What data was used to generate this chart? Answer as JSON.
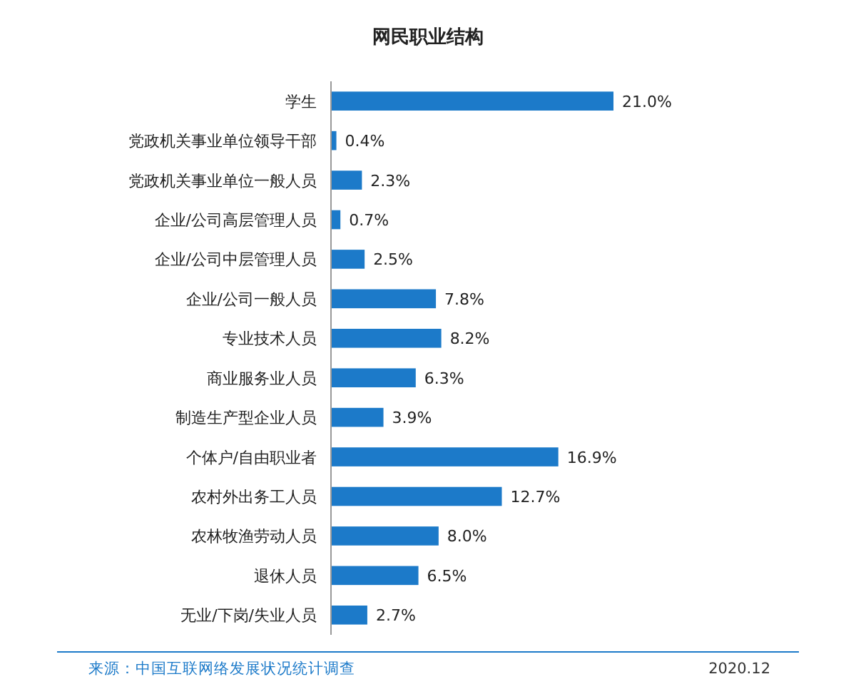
{
  "chart_data": {
    "type": "bar",
    "orientation": "horizontal",
    "title": "网民职业结构",
    "categories": [
      "学生",
      "党政机关事业单位领导干部",
      "党政机关事业单位一般人员",
      "企业/公司高层管理人员",
      "企业/公司中层管理人员",
      "企业/公司一般人员",
      "专业技术人员",
      "商业服务业人员",
      "制造生产型企业人员",
      "个体户/自由职业者",
      "农村外出务工人员",
      "农林牧渔劳动人员",
      "退休人员",
      "无业/下岗/失业人员"
    ],
    "values": [
      21.0,
      0.4,
      2.3,
      0.7,
      2.5,
      7.8,
      8.2,
      6.3,
      3.9,
      16.9,
      12.7,
      8.0,
      6.5,
      2.7
    ],
    "value_labels": [
      "21.0%",
      "0.4%",
      "2.3%",
      "0.7%",
      "2.5%",
      "7.8%",
      "8.2%",
      "6.3%",
      "3.9%",
      "16.9%",
      "12.7%",
      "8.0%",
      "6.5%",
      "2.7%"
    ],
    "color": "#1c7ac9",
    "annotations": [
      "来源：中国互联网络发展状况统计调查",
      "2020.12"
    ]
  }
}
